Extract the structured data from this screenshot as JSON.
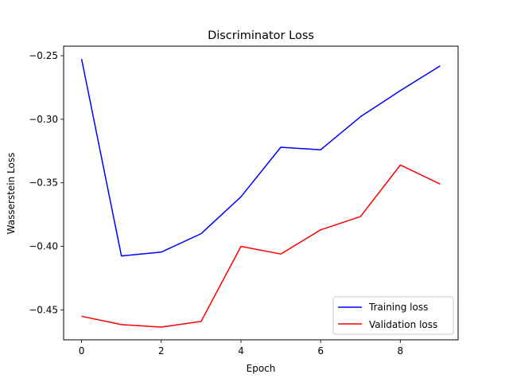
{
  "chart_data": {
    "type": "line",
    "title": "Discriminator Loss",
    "xlabel": "Epoch",
    "ylabel": "Wasserstein Loss",
    "x": [
      0,
      1,
      2,
      3,
      4,
      5,
      6,
      7,
      8,
      9
    ],
    "xlim": [
      -0.45,
      9.45
    ],
    "ylim": [
      -0.4735,
      -0.2425
    ],
    "xticks": [
      0,
      2,
      4,
      6,
      8
    ],
    "xtick_labels": [
      "0",
      "2",
      "4",
      "6",
      "8"
    ],
    "yticks": [
      -0.45,
      -0.4,
      -0.35,
      -0.3,
      -0.25
    ],
    "ytick_labels": [
      "−0.45",
      "−0.40",
      "−0.35",
      "−0.30",
      "−0.25"
    ],
    "grid": false,
    "legend_position": "bottom-right",
    "series": [
      {
        "name": "Training loss",
        "color": "#0000ff",
        "values": [
          -0.2525,
          -0.4075,
          -0.4045,
          -0.39,
          -0.361,
          -0.322,
          -0.324,
          -0.298,
          -0.2775,
          -0.258
        ]
      },
      {
        "name": "Validation loss",
        "color": "#ff0000",
        "values": [
          -0.455,
          -0.4615,
          -0.4635,
          -0.459,
          -0.4,
          -0.406,
          -0.387,
          -0.3765,
          -0.336,
          -0.351
        ]
      }
    ]
  }
}
